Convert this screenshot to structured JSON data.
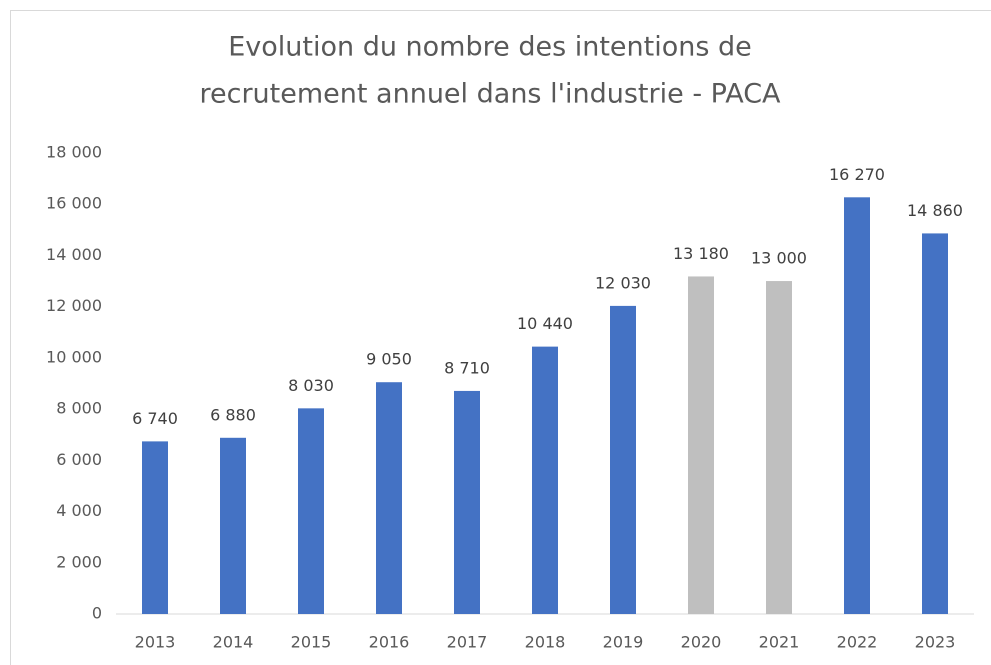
{
  "chart_data": {
    "type": "bar",
    "title": [
      "Evolution du nombre des intentions de",
      "recrutement annuel dans l'industrie - PACA"
    ],
    "categories": [
      "2013",
      "2014",
      "2015",
      "2016",
      "2017",
      "2018",
      "2019",
      "2020",
      "2021",
      "2022",
      "2023"
    ],
    "values": [
      6740,
      6880,
      8030,
      9050,
      8710,
      10440,
      12030,
      13180,
      13000,
      16270,
      14860
    ],
    "value_labels": [
      "6 740",
      "6 880",
      "8 030",
      "9 050",
      "8 710",
      "10 440",
      "12 030",
      "13 180",
      "13 000",
      "16 270",
      "14 860"
    ],
    "colors": [
      "#4472c4",
      "#4472c4",
      "#4472c4",
      "#4472c4",
      "#4472c4",
      "#4472c4",
      "#4472c4",
      "#bfbfbf",
      "#bfbfbf",
      "#4472c4",
      "#4472c4"
    ],
    "ylim": [
      0,
      18000
    ],
    "yticks": [
      0,
      {
        "value": 2000,
        "label": "2 000"
      },
      {
        "value": 4000,
        "label": "4 000"
      },
      {
        "value": 6000,
        "label": "6 000"
      },
      {
        "value": 8000,
        "label": "8 000"
      },
      {
        "value": 10000,
        "label": "10 000"
      },
      {
        "value": 12000,
        "label": "12 000"
      },
      {
        "value": 14000,
        "label": "14 000"
      },
      {
        "value": 16000,
        "label": "16 000"
      },
      {
        "value": 18000,
        "label": "18 000"
      }
    ],
    "grid": false
  }
}
